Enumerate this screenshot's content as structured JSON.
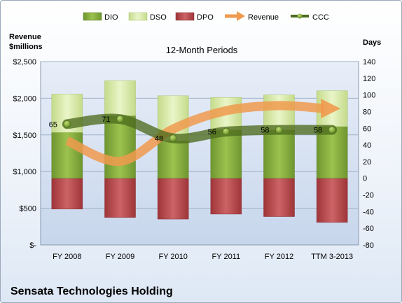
{
  "chart_data": {
    "type": "bar",
    "title": "12-Month Periods",
    "company": "Sensata Technologies Holding",
    "y_left_label_line1": "Revenue",
    "y_left_label_line2": "$millions",
    "y_right_label": "Days",
    "categories": [
      "FY 2008",
      "FY 2009",
      "FY 2010",
      "FY 2011",
      "FY 2012",
      "TTM 3-2013"
    ],
    "y_left": {
      "min": 0,
      "max": 2500,
      "ticks": [
        0,
        500,
        1000,
        1500,
        2000,
        2500
      ],
      "tick_labels": [
        "$-",
        "$500",
        "$1,000",
        "$1,500",
        "$2,000",
        "$2,500"
      ]
    },
    "y_right": {
      "min": -80,
      "max": 140,
      "ticks": [
        -80,
        -60,
        -40,
        -20,
        0,
        20,
        40,
        60,
        80,
        100,
        120,
        140
      ],
      "tick_labels": [
        "-80",
        "-60",
        "-40",
        "-20",
        "0",
        "20",
        "40",
        "60",
        "80",
        "100",
        "120",
        "140"
      ]
    },
    "series": [
      {
        "name": "DIO",
        "kind": "bar",
        "axis": "right",
        "color": "#7ea83a",
        "values": [
          55,
          75,
          45,
          58,
          58,
          62
        ]
      },
      {
        "name": "DSO",
        "kind": "bar",
        "axis": "right",
        "color": "#d5e8a6",
        "values": [
          46,
          42,
          54,
          39,
          42,
          43
        ]
      },
      {
        "name": "DPO",
        "kind": "bar",
        "axis": "right",
        "color": "#b94a4d",
        "values": [
          -37,
          -47,
          -49,
          -43,
          -46,
          -53
        ]
      },
      {
        "name": "Revenue",
        "kind": "line",
        "axis": "left",
        "color": "#f09a4e",
        "values": [
          1420,
          1140,
          1580,
          1830,
          1900,
          1860
        ]
      },
      {
        "name": "CCC",
        "kind": "line",
        "axis": "right",
        "color": "#4e6b1f",
        "values": [
          65,
          71,
          48,
          56,
          58,
          58
        ],
        "labels": [
          "65",
          "71",
          "48",
          "56",
          "58",
          "58"
        ]
      }
    ],
    "grid": true,
    "legend": "top"
  }
}
